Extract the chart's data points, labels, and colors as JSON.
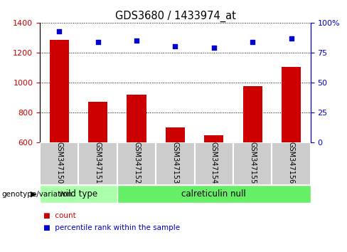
{
  "title": "GDS3680 / 1433974_at",
  "samples": [
    "GSM347150",
    "GSM347151",
    "GSM347152",
    "GSM347153",
    "GSM347154",
    "GSM347155",
    "GSM347156"
  ],
  "counts": [
    1285,
    872,
    920,
    700,
    648,
    975,
    1105
  ],
  "percentile_ranks": [
    93,
    84,
    85,
    80,
    79,
    84,
    87
  ],
  "ylim_left": [
    600,
    1400
  ],
  "ylim_right": [
    0,
    100
  ],
  "yticks_left": [
    600,
    800,
    1000,
    1200,
    1400
  ],
  "yticks_right": [
    0,
    25,
    50,
    75,
    100
  ],
  "bar_color": "#cc0000",
  "dot_color": "#0000cc",
  "grid_color": "#000000",
  "background_color": "#ffffff",
  "group_labels": [
    "wild type",
    "calreticulin null"
  ],
  "group_ranges": [
    [
      0,
      2
    ],
    [
      2,
      7
    ]
  ],
  "wt_color": "#aaffaa",
  "cn_color": "#66ee66",
  "label_bg_color": "#cccccc",
  "genotype_label": "genotype/variation",
  "legend_count": "count",
  "legend_percentile": "percentile rank within the sample",
  "bar_width": 0.5,
  "figsize": [
    4.88,
    3.54
  ],
  "dpi": 100
}
